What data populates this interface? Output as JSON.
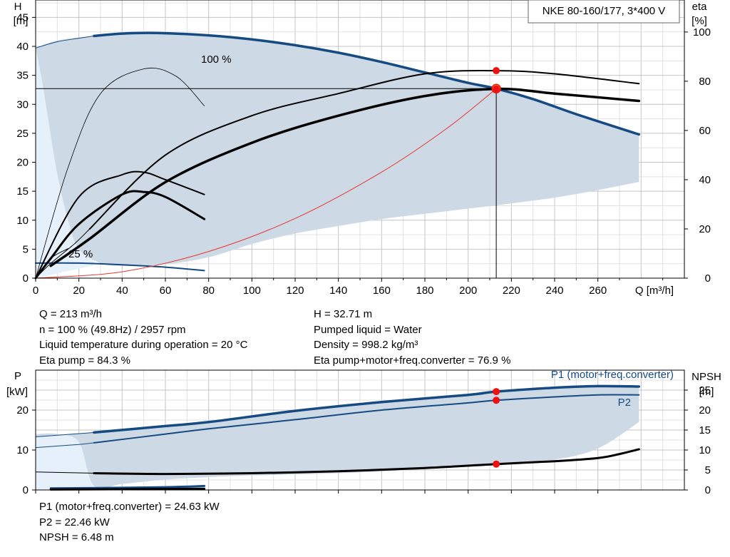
{
  "chart_data": {
    "type": "line",
    "title": "NKE 80-160/177, 3*400 V",
    "x_label": "Q [m³/h]",
    "x_range": [
      0,
      300
    ],
    "x_ticks": [
      0,
      20,
      40,
      60,
      80,
      100,
      120,
      140,
      160,
      180,
      200,
      220,
      240,
      260
    ],
    "x_tick_labels": [
      "0",
      "20",
      "40",
      "60",
      "80",
      "100",
      "120",
      "140",
      "160",
      "180",
      "200",
      "220",
      "240",
      "260"
    ],
    "grid": true,
    "upper_panel": {
      "left_axis": {
        "label_lines": [
          "H",
          "[m]"
        ],
        "range": [
          0,
          48
        ],
        "ticks": [
          0,
          5,
          10,
          15,
          20,
          25,
          30,
          35,
          40,
          45
        ],
        "tick_labels": [
          "0",
          "5",
          "10",
          "15",
          "20",
          "25",
          "30",
          "35",
          "40",
          "45"
        ]
      },
      "right_axis": {
        "label_lines": [
          "eta",
          "[%]"
        ],
        "range": [
          0,
          113
        ],
        "ticks": [
          0,
          20,
          40,
          60,
          80,
          100
        ],
        "tick_labels": [
          "0",
          "20",
          "40",
          "60",
          "80",
          "100"
        ]
      },
      "curve_labels": [
        {
          "text": "100 %",
          "x": 78,
          "y": 42.8
        },
        {
          "text": "25 %",
          "x": 16,
          "y": 4.6
        }
      ],
      "envelope_h": {
        "upper_x": [
          0,
          10,
          27,
          40,
          56,
          80,
          100,
          120,
          140,
          160,
          180,
          200,
          213,
          230,
          250,
          279
        ],
        "upper_y": [
          39.7,
          41.0,
          41.8,
          42.2,
          42.3,
          41.9,
          41.2,
          40.2,
          38.9,
          37.3,
          35.5,
          33.7,
          32.7,
          30.9,
          28.3,
          24.8
        ],
        "lower_x": [
          279,
          260,
          240,
          220,
          200,
          180,
          160,
          140,
          120,
          100,
          80,
          60,
          40,
          30,
          20,
          15,
          10,
          6,
          3,
          0
        ],
        "lower_y": [
          16.6,
          15.2,
          13.9,
          12.9,
          12.0,
          11.1,
          10.2,
          9.0,
          7.7,
          5.9,
          3.6,
          2.4,
          2.1,
          2.6,
          5.0,
          10.0,
          18.0,
          27.0,
          34.0,
          39.7
        ]
      },
      "series": [
        {
          "name": "100 %",
          "kind": "head",
          "x": [
            27,
            40,
            56,
            80,
            100,
            120,
            140,
            160,
            180,
            200,
            213,
            230,
            250,
            279
          ],
          "y": [
            41.8,
            42.2,
            42.3,
            41.9,
            41.2,
            40.2,
            38.9,
            37.3,
            35.5,
            33.7,
            32.7,
            30.9,
            28.3,
            24.8
          ]
        },
        {
          "kind": "head-extension",
          "x": [
            0,
            10,
            20,
            27
          ],
          "y": [
            39.7,
            40.8,
            41.4,
            41.8
          ]
        },
        {
          "kind": "head-min-speed",
          "x": [
            0,
            20,
            40,
            60,
            78
          ],
          "y": [
            2.6,
            2.6,
            2.3,
            1.9,
            1.3
          ]
        },
        {
          "kind": "system-curve",
          "x": [
            0,
            40,
            80,
            120,
            160,
            190,
            213
          ],
          "y": [
            0,
            1.1,
            4.6,
            10.3,
            18.3,
            25.8,
            32.7
          ]
        },
        {
          "kind": "eta-pump",
          "axis": "right",
          "x": [
            25,
            60,
            100,
            140,
            180,
            213,
            240,
            279
          ],
          "y": [
            20,
            50,
            66,
            75,
            83,
            84.3,
            83,
            79
          ]
        },
        {
          "kind": "eta-total",
          "axis": "right",
          "x": [
            7,
            25,
            60,
            100,
            140,
            180,
            213,
            240,
            279
          ],
          "y": [
            5,
            16,
            39,
            55,
            66,
            74,
            76.9,
            75,
            72
          ]
        },
        {
          "kind": "eta-low-speed",
          "axis": "right",
          "x": [
            0,
            20,
            40,
            50,
            60,
            78
          ],
          "y": [
            0,
            33,
            42,
            43,
            40,
            34
          ]
        },
        {
          "kind": "eta-low-speed-2",
          "axis": "right",
          "x": [
            0,
            7,
            20,
            40,
            50,
            60,
            78
          ],
          "y": [
            0,
            8,
            22,
            34,
            35,
            33,
            24
          ]
        },
        {
          "kind": "eta-fan-1",
          "axis": "right",
          "x": [
            0,
            7,
            18,
            25
          ],
          "y": [
            0,
            6,
            14,
            20
          ]
        },
        {
          "kind": "eta-fan-2",
          "axis": "right",
          "x": [
            0,
            7,
            15
          ],
          "y": [
            0,
            8,
            12
          ]
        },
        {
          "kind": "eta-extension-thin",
          "axis": "right",
          "x": [
            0,
            15,
            30,
            50,
            65,
            78
          ],
          "y": [
            0,
            45,
            75,
            85,
            82,
            70
          ]
        }
      ],
      "operating_point": {
        "x": 213,
        "H": 32.71,
        "eta_pump": 84.3,
        "eta_total": 76.9
      }
    },
    "lower_panel": {
      "left_axis": {
        "label_lines": [
          "P",
          "[kW]"
        ],
        "range": [
          0,
          30
        ],
        "ticks": [
          0,
          10,
          20
        ],
        "tick_labels": [
          "0",
          "10",
          "20"
        ]
      },
      "right_axis": {
        "label_lines": [
          "NPSH",
          "[m]"
        ],
        "range": [
          0,
          30
        ],
        "ticks": [
          0,
          5,
          10,
          15,
          20,
          25
        ],
        "tick_labels": [
          "0",
          "5",
          "10",
          "15",
          "20",
          "25"
        ]
      },
      "envelope": {
        "upper_x": [
          0,
          27,
          80,
          120,
          160,
          200,
          213,
          240,
          260,
          279
        ],
        "upper_y": [
          13.3,
          14.4,
          17.0,
          19.8,
          22.0,
          23.8,
          24.6,
          25.6,
          26.0,
          25.9
        ],
        "lower_x": [
          279,
          260,
          240,
          213,
          180,
          140,
          100,
          80,
          60,
          40,
          27,
          20,
          10,
          0
        ],
        "lower_y": [
          17.0,
          10.4,
          7.6,
          6.4,
          5.2,
          4.2,
          3.6,
          3.2,
          2.6,
          1.5,
          1.0,
          12.0,
          14.0,
          14.0
        ]
      },
      "series": [
        {
          "name": "P1 (motor+freq.converter)",
          "x": [
            27,
            60,
            80,
            120,
            160,
            200,
            213,
            240,
            260,
            279
          ],
          "y": [
            14.4,
            16.0,
            17.0,
            19.8,
            22.0,
            23.8,
            24.63,
            25.6,
            26.0,
            25.9
          ]
        },
        {
          "kind": "P1-extension",
          "x": [
            0,
            10,
            20,
            27
          ],
          "y": [
            13.3,
            13.7,
            14.1,
            14.4
          ]
        },
        {
          "name": "P2",
          "x": [
            27,
            60,
            80,
            120,
            160,
            200,
            213,
            240,
            260,
            279
          ],
          "y": [
            11.8,
            14.0,
            15.3,
            17.6,
            20.0,
            21.8,
            22.46,
            23.3,
            23.8,
            23.8
          ]
        },
        {
          "kind": "P2-extension",
          "x": [
            0,
            10,
            20,
            27
          ],
          "y": [
            10.6,
            11.0,
            11.4,
            11.8
          ]
        },
        {
          "kind": "P-min-speed",
          "x": [
            7,
            30,
            60,
            78
          ],
          "y": [
            0.4,
            0.5,
            0.7,
            1.0
          ]
        },
        {
          "kind": "NPSH",
          "axis": "right",
          "x": [
            27,
            60,
            100,
            140,
            180,
            213,
            240,
            260,
            270,
            279
          ],
          "y": [
            4.2,
            4.0,
            4.2,
            4.7,
            5.5,
            6.48,
            7.2,
            8.0,
            9.0,
            10.2
          ]
        },
        {
          "kind": "NPSH-extension",
          "axis": "right",
          "x": [
            0,
            27
          ],
          "y": [
            4.5,
            4.2
          ]
        },
        {
          "kind": "NPSH-min-speed",
          "axis": "right",
          "x": [
            7,
            78
          ],
          "y": [
            0.1,
            0.3
          ]
        }
      ],
      "operating_point": {
        "x": 213,
        "P1": 24.63,
        "P2": 22.46,
        "NPSH": 6.48
      }
    }
  },
  "results": {
    "upper_left": [
      "Q = 213 m³/h",
      "n = 100 % (49.8Hz) / 2957 rpm",
      "Liquid temperature during operation = 20 °C",
      "Eta pump = 84.3 %"
    ],
    "upper_right": [
      "H = 32.71 m",
      "Pumped liquid = Water",
      "Density = 998.2 kg/m³",
      "Eta pump+motor+freq.converter = 76.9 %"
    ],
    "lower_left": [
      "P1 (motor+freq.converter) = 24.63 kW",
      "P2 = 22.46 kW",
      "NPSH = 6.48 m"
    ]
  },
  "colors": {
    "envelope_fill": "#cdd9e5",
    "envelope_light": "#e6f0fa",
    "blue_curve": "#164a82",
    "black_curve": "#000000",
    "system_curve": "#e8352e",
    "operating_point": "#ee1111",
    "operating_point_ring": "#f2c400",
    "grid": "#c8c8c8"
  }
}
